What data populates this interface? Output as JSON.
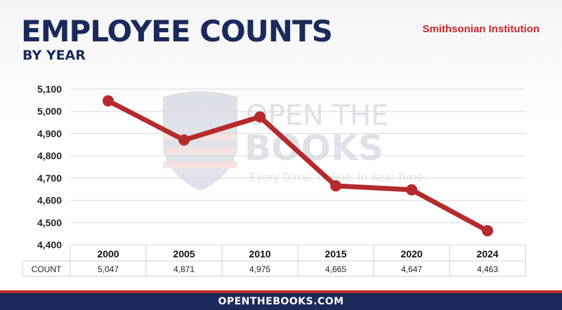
{
  "header": {
    "title": "EMPLOYEE COUNTS",
    "subtitle": "BY YEAR",
    "agency": "Smithsonian Institution"
  },
  "watermark": {
    "brand_line1": "OPEN THE",
    "brand_line2": "BOOKS",
    "tagline": "Every Dime. Online. In Real Time.",
    "icon": "shield-icon"
  },
  "footer": {
    "text": "OPENTHEBOOKS.COM"
  },
  "colors": {
    "navy": "#1b2a5b",
    "red": "#c0282c",
    "line": "#b52a2d"
  },
  "chart_data": {
    "type": "line",
    "title": "EMPLOYEE COUNTS",
    "categories": [
      "2000",
      "2005",
      "2010",
      "2015",
      "2020",
      "2024"
    ],
    "series": [
      {
        "name": "COUNT",
        "values": [
          5047,
          4871,
          4975,
          4665,
          4647,
          4463
        ]
      }
    ],
    "value_labels": [
      "5,047",
      "4,871",
      "4,975",
      "4,665",
      "4,647",
      "4,463"
    ],
    "y_ticks": [
      "5,100",
      "5,000",
      "4,900",
      "4,800",
      "4,700",
      "4,600",
      "4,500",
      "4,400"
    ],
    "ylim": [
      4400,
      5100
    ],
    "grid": true,
    "table_row_label": "COUNT"
  }
}
